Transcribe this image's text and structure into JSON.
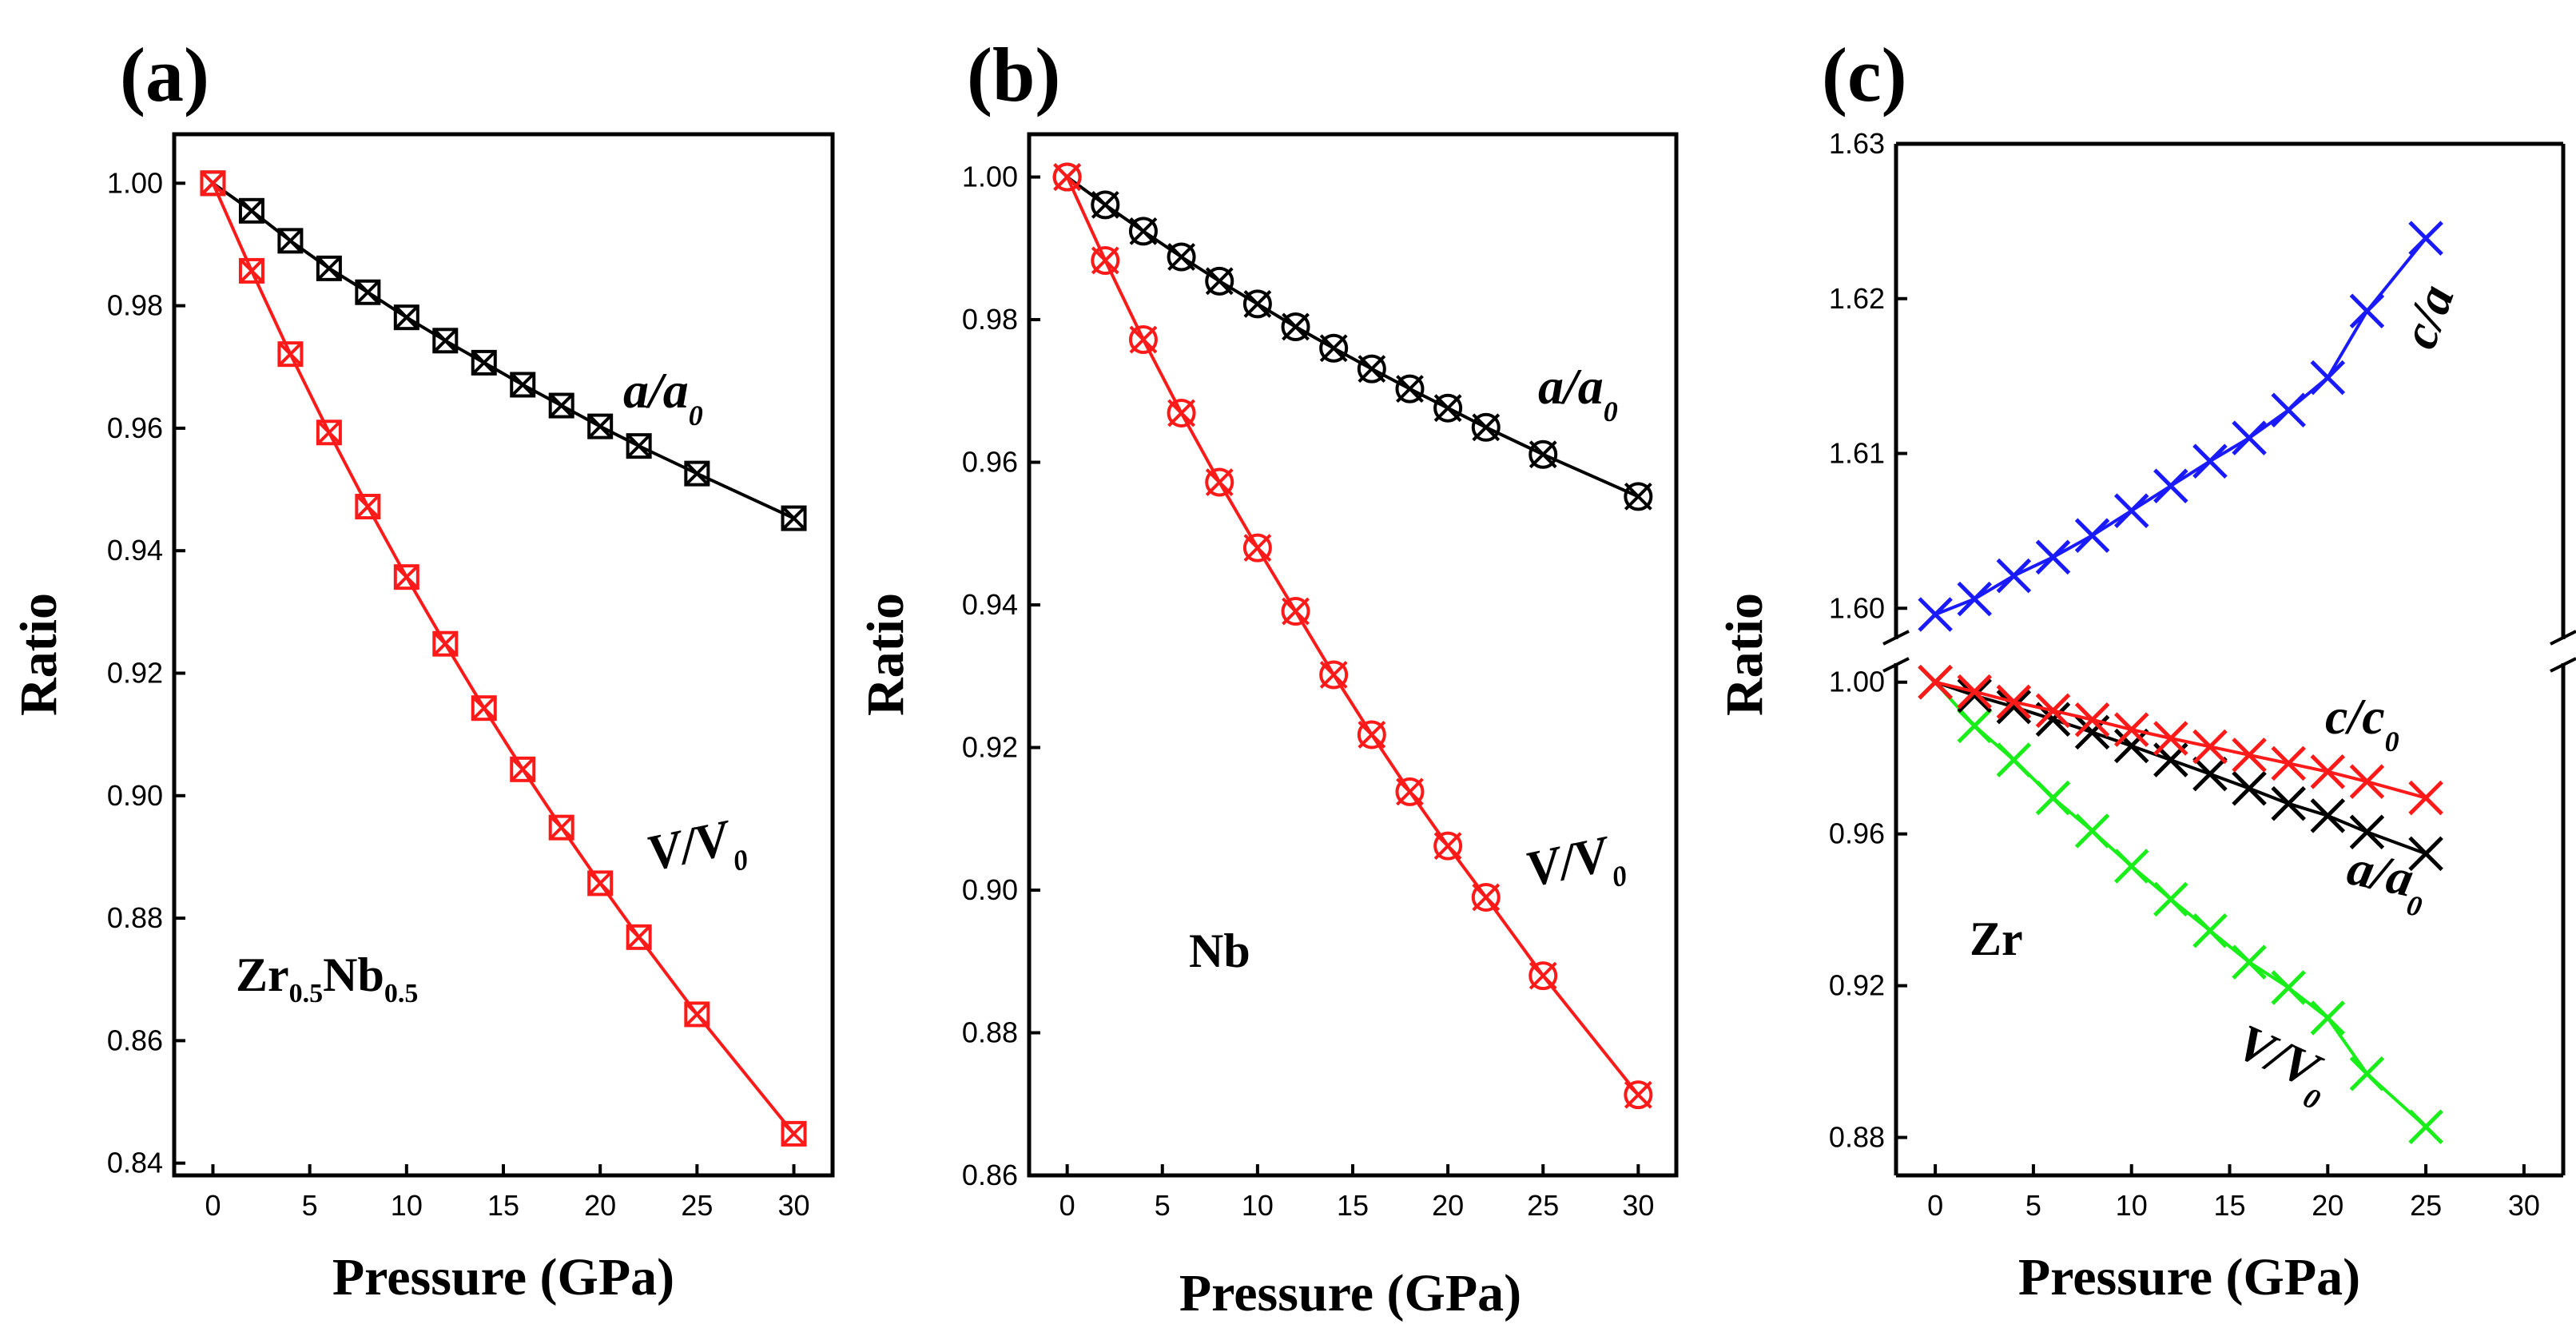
{
  "colors": {
    "black": "#000000",
    "red": "#ff1a1a",
    "blue": "#1a1aff",
    "green": "#1aee1a"
  },
  "chart_data": [
    {
      "panel": "(a)",
      "type": "line",
      "xlabel": "Pressure (GPa)",
      "ylabel": "Ratio",
      "xlim": [
        -2,
        32
      ],
      "ylim": [
        0.838,
        1.008
      ],
      "xticks": [
        0,
        5,
        10,
        15,
        20,
        25,
        30
      ],
      "xtick_labels": [
        "0",
        "5",
        "10",
        "15",
        "20",
        "25",
        "30"
      ],
      "yticks": [
        0.84,
        0.86,
        0.88,
        0.9,
        0.92,
        0.94,
        0.96,
        0.98,
        1.0
      ],
      "ytick_labels": [
        "0.84",
        "0.86",
        "0.88",
        "0.90",
        "0.92",
        "0.94",
        "0.96",
        "0.98",
        "1.00"
      ],
      "material": {
        "base": "Zr",
        "sub1": "0.5",
        "mid": "Nb",
        "sub2": "0.5"
      },
      "series": [
        {
          "label_main": "a/a",
          "label_sub": "0",
          "color": "black",
          "marker": "boxed-x",
          "x": [
            0,
            2,
            4,
            6,
            8,
            10,
            12,
            14,
            16,
            18,
            20,
            22,
            25,
            30
          ],
          "y": [
            1.0,
            0.9955,
            0.9906,
            0.9861,
            0.9822,
            0.9781,
            0.9743,
            0.9707,
            0.9671,
            0.9637,
            0.9603,
            0.9571,
            0.9526,
            0.9453
          ]
        },
        {
          "label_main": "V/V",
          "label_sub": "0",
          "color": "red",
          "marker": "boxed-x",
          "x": [
            0,
            2,
            4,
            6,
            8,
            10,
            12,
            14,
            16,
            18,
            20,
            22,
            25,
            30
          ],
          "y": [
            1.0,
            0.9857,
            0.9721,
            0.9593,
            0.9472,
            0.9357,
            0.9248,
            0.9143,
            0.9043,
            0.8948,
            0.8857,
            0.8769,
            0.8643,
            0.8448
          ]
        }
      ]
    },
    {
      "panel": "(b)",
      "type": "line",
      "xlabel": "Pressure (GPa)",
      "ylabel": "Ratio",
      "xlim": [
        -2,
        32
      ],
      "ylim": [
        0.86,
        1.006
      ],
      "xticks": [
        0,
        5,
        10,
        15,
        20,
        25,
        30
      ],
      "xtick_labels": [
        "0",
        "5",
        "10",
        "15",
        "20",
        "25",
        "30"
      ],
      "yticks": [
        0.86,
        0.88,
        0.9,
        0.92,
        0.94,
        0.96,
        0.98,
        1.0
      ],
      "ytick_labels": [
        "0.86",
        "0.88",
        "0.90",
        "0.92",
        "0.94",
        "0.96",
        "0.98",
        "1.00"
      ],
      "material": {
        "base": "Nb"
      },
      "series": [
        {
          "label_main": "a/a",
          "label_sub": "0",
          "color": "black",
          "marker": "circled-x",
          "x": [
            0,
            2,
            4,
            6,
            8,
            10,
            12,
            14,
            16,
            18,
            20,
            22,
            25,
            30
          ],
          "y": [
            1.0,
            0.9961,
            0.9924,
            0.9888,
            0.9854,
            0.9822,
            0.979,
            0.976,
            0.9731,
            0.9703,
            0.9676,
            0.9649,
            0.9611,
            0.9552
          ]
        },
        {
          "label_main": "V/V",
          "label_sub": "0",
          "color": "red",
          "marker": "circled-x",
          "x": [
            0,
            2,
            4,
            6,
            8,
            10,
            12,
            14,
            16,
            18,
            20,
            22,
            25,
            30
          ],
          "y": [
            1.0,
            0.9883,
            0.9772,
            0.9669,
            0.9572,
            0.948,
            0.9391,
            0.9302,
            0.9218,
            0.9138,
            0.9062,
            0.899,
            0.888,
            0.8713
          ]
        }
      ]
    },
    {
      "panel": "(c)",
      "type": "line",
      "xlabel": "Pressure (GPa)",
      "ylabel": "Ratio",
      "xlim": [
        -2,
        32
      ],
      "broken_y_axis": true,
      "upper_ylim": [
        1.598,
        1.63
      ],
      "upper_yticks": [
        1.6,
        1.61,
        1.62,
        1.63
      ],
      "upper_ytick_labels": [
        "1.60",
        "1.61",
        "1.62",
        "1.63"
      ],
      "lower_ylim": [
        0.87,
        1.005
      ],
      "lower_yticks": [
        0.88,
        0.92,
        0.96,
        1.0
      ],
      "lower_ytick_labels": [
        "0.88",
        "0.92",
        "0.96",
        "1.00"
      ],
      "xticks": [
        0,
        5,
        10,
        15,
        20,
        25,
        30
      ],
      "xtick_labels": [
        "0",
        "5",
        "10",
        "15",
        "20",
        "25",
        "30"
      ],
      "material": {
        "base": "Zr"
      },
      "series": [
        {
          "label_main": "c/a",
          "label_sub": "",
          "color": "blue",
          "marker": "x",
          "axis": "upper",
          "x": [
            0,
            2,
            4,
            6,
            8,
            10,
            12,
            14,
            16,
            18,
            20,
            22,
            25
          ],
          "y": [
            1.5996,
            1.6006,
            1.6021,
            1.6033,
            1.6047,
            1.6063,
            1.6079,
            1.6095,
            1.611,
            1.6128,
            1.6149,
            1.6192,
            1.6239
          ]
        },
        {
          "label_main": "c/c",
          "label_sub": "0",
          "color": "red",
          "marker": "x",
          "axis": "lower",
          "x": [
            0,
            2,
            4,
            6,
            8,
            10,
            12,
            14,
            16,
            18,
            20,
            22,
            25
          ],
          "y": [
            1.0,
            0.9975,
            0.9948,
            0.9925,
            0.9901,
            0.9875,
            0.9852,
            0.983,
            0.9808,
            0.9786,
            0.9764,
            0.9738,
            0.9695
          ]
        },
        {
          "label_main": "a/a",
          "label_sub": "0",
          "color": "black",
          "marker": "x",
          "axis": "lower",
          "x": [
            0,
            2,
            4,
            6,
            8,
            10,
            12,
            14,
            16,
            18,
            20,
            22,
            25
          ],
          "y": [
            1.0,
            0.9965,
            0.9935,
            0.9902,
            0.9868,
            0.9832,
            0.9795,
            0.9758,
            0.972,
            0.968,
            0.9648,
            0.9605,
            0.9548
          ]
        },
        {
          "label_main": "V/V",
          "label_sub": "0",
          "color": "green",
          "marker": "x",
          "axis": "lower",
          "x": [
            0,
            2,
            4,
            6,
            8,
            10,
            12,
            14,
            16,
            18,
            20,
            22,
            25
          ],
          "y": [
            1.0,
            0.9885,
            0.9795,
            0.9695,
            0.9608,
            0.9515,
            0.9428,
            0.9345,
            0.9262,
            0.9195,
            0.9115,
            0.8968,
            0.8828
          ]
        }
      ]
    }
  ]
}
